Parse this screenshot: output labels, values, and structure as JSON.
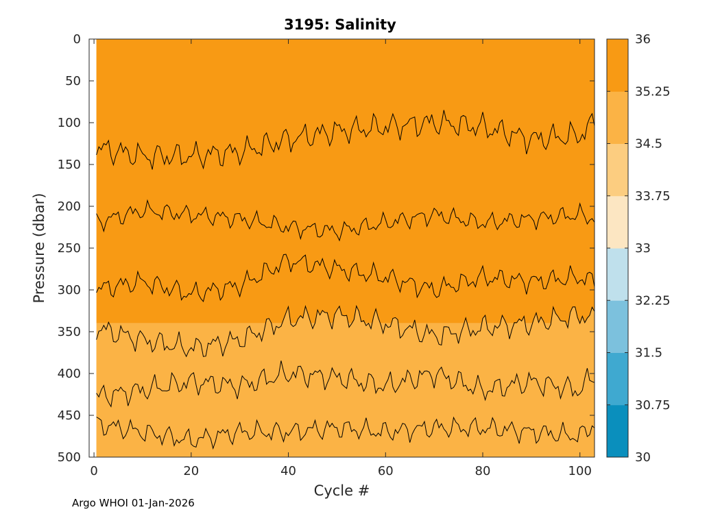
{
  "chart_data": {
    "type": "contourf",
    "title": "3195:  Salinity",
    "xlabel": "Cycle #",
    "ylabel": "Pressure (dbar)",
    "xlim": [
      -1,
      103
    ],
    "ylim": [
      0,
      500
    ],
    "y_reversed": true,
    "xticks": [
      0,
      20,
      40,
      60,
      80,
      100
    ],
    "yticks": [
      0,
      50,
      100,
      150,
      200,
      250,
      300,
      350,
      400,
      450,
      500
    ],
    "colorbar": {
      "levels": [
        30,
        30.75,
        31.5,
        32.25,
        33,
        33.75,
        34.5,
        35.25,
        36
      ],
      "tick_labels": [
        "30",
        "30.75",
        "31.5",
        "32.25",
        "33",
        "33.75",
        "34.5",
        "35.25",
        "36"
      ],
      "colors": [
        "#0a8fbd",
        "#3fa9d0",
        "#7cc1dd",
        "#bfe0ec",
        "#fce6c2",
        "#fccd80",
        "#fbb345",
        "#f89a14"
      ]
    },
    "regions": [
      {
        "name": "surface-fresher-left",
        "salinity_band": [
          34.5,
          35.25
        ],
        "cycles": [
          0.5,
          13
        ],
        "pressure": [
          0,
          150
        ]
      },
      {
        "name": "surface-fresher-right",
        "salinity_band": [
          34.5,
          35.25
        ],
        "cycles": [
          69,
          83
        ],
        "pressure": [
          0,
          100
        ]
      },
      {
        "name": "core-salty",
        "salinity_band": [
          35.25,
          36
        ],
        "cycles": [
          0.5,
          103
        ],
        "pressure": [
          0,
          340
        ]
      },
      {
        "name": "deep-fresher",
        "salinity_band": [
          34.5,
          35.25
        ],
        "cycles": [
          0.5,
          103
        ],
        "pressure": [
          340,
          500
        ]
      }
    ],
    "boundary_340": {
      "cycles": [
        0,
        10,
        20,
        30,
        40,
        50,
        60,
        70,
        80,
        90,
        100,
        103
      ],
      "pressure": [
        345,
        360,
        370,
        360,
        335,
        330,
        340,
        355,
        345,
        340,
        330,
        335
      ]
    },
    "isoline_300": {
      "cycles": [
        0,
        10,
        20,
        30,
        40,
        50,
        60,
        70,
        80,
        90,
        100,
        103
      ],
      "pressure": [
        300,
        290,
        305,
        295,
        265,
        275,
        285,
        300,
        285,
        290,
        285,
        290
      ]
    },
    "isoline_420": {
      "cycles": [
        0,
        10,
        20,
        30,
        40,
        50,
        60,
        70,
        80,
        90,
        100,
        103
      ],
      "pressure": [
        428,
        420,
        410,
        415,
        400,
        405,
        415,
        400,
        420,
        410,
        420,
        400
      ]
    },
    "isoline_465": {
      "cycles": [
        0,
        10,
        20,
        30,
        40,
        50,
        60,
        70,
        80,
        90,
        100,
        103
      ],
      "pressure": [
        460,
        470,
        480,
        470,
        470,
        465,
        470,
        465,
        465,
        470,
        475,
        460
      ]
    },
    "isoline_120": {
      "cycles": [
        0,
        10,
        20,
        30,
        40,
        50,
        60,
        70,
        80,
        90,
        100,
        103
      ],
      "pressure": [
        130,
        140,
        140,
        135,
        120,
        110,
        105,
        100,
        105,
        120,
        115,
        100
      ]
    },
    "isoline_220": {
      "cycles": [
        0,
        10,
        20,
        30,
        40,
        50,
        60,
        70,
        80,
        90,
        100,
        103
      ],
      "pressure": [
        220,
        205,
        210,
        215,
        225,
        230,
        220,
        210,
        220,
        215,
        210,
        215
      ]
    },
    "credit": "Argo WHOI 01-Jan-2026"
  }
}
